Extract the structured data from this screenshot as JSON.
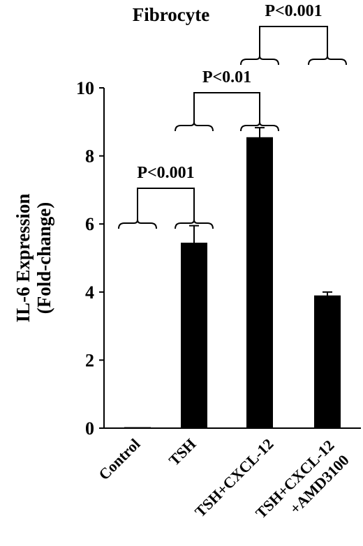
{
  "chart_data": {
    "type": "bar",
    "title": "Fibrocyte",
    "ylabel_line1": "IL-6  Expression",
    "ylabel_line2": "(Fold-change)",
    "xlabel": "",
    "ylim": [
      0,
      10
    ],
    "yticks": [
      "0",
      "2",
      "4",
      "6",
      "8",
      "10"
    ],
    "categories": [
      {
        "line1": "Control",
        "line2": ""
      },
      {
        "line1": "TSH",
        "line2": ""
      },
      {
        "line1": "TSH+CXCL-12",
        "line2": ""
      },
      {
        "line1": "TSH+CXCL-12",
        "line2": "+AMD3100"
      }
    ],
    "values": [
      0.03,
      5.45,
      8.55,
      3.9
    ],
    "errors": [
      0.0,
      0.5,
      0.28,
      0.1
    ],
    "bar_color": "#000000",
    "grid": false,
    "significance": [
      {
        "label": "P<0.001",
        "from": 0,
        "to": 1
      },
      {
        "label": "P<0.01",
        "from": 1,
        "to": 2
      },
      {
        "label": "P<0.001",
        "from": 2,
        "to": 3
      }
    ]
  }
}
